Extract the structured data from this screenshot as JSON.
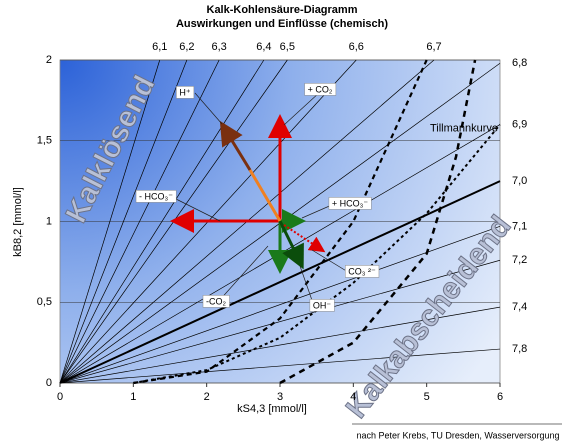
{
  "chart_data": {
    "type": "line",
    "title": "Kalk-Kohlensäure-Diagramm",
    "subtitle": "Auswirkungen und Einflüsse (chemisch)",
    "x_label": "kS4,3 [mmol/l]",
    "y_label": "kB8,2 [mmol/l]",
    "source": "nach Peter Krebs, TU Dresden, Wasserversorgung",
    "xlim": [
      0,
      6
    ],
    "xticks": [
      0,
      1,
      2,
      3,
      4,
      5,
      6
    ],
    "ylim": [
      0,
      2
    ],
    "yticks": [
      0,
      {
        "value": 0.5,
        "label": "0,5"
      },
      1,
      {
        "value": 1.5,
        "label": "1,5"
      },
      2
    ],
    "grid": true,
    "series": [
      {
        "name": "6,1",
        "color": "#000000",
        "width": 0.7,
        "x": [
          0,
          1.36
        ],
        "values": [
          0,
          2
        ]
      },
      {
        "name": "6,2",
        "color": "#000000",
        "width": 0.7,
        "x": [
          0,
          1.73
        ],
        "values": [
          0,
          2
        ]
      },
      {
        "name": "6,3",
        "color": "#000000",
        "width": 0.7,
        "x": [
          0,
          2.17
        ],
        "values": [
          0,
          2
        ]
      },
      {
        "name": "6,4",
        "color": "#000000",
        "width": 0.7,
        "x": [
          0,
          2.78
        ],
        "values": [
          0,
          2
        ]
      },
      {
        "name": "6,5",
        "color": "#000000",
        "width": 0.7,
        "x": [
          0,
          3.1
        ],
        "values": [
          0,
          2
        ]
      },
      {
        "name": "6,6",
        "color": "#000000",
        "width": 0.7,
        "x": [
          0,
          4.04
        ],
        "values": [
          0,
          2
        ]
      },
      {
        "name": "6,7",
        "color": "#000000",
        "width": 0.7,
        "x": [
          0,
          5.1
        ],
        "values": [
          0,
          2
        ]
      },
      {
        "name": "6,8",
        "color": "#000000",
        "width": 0.7,
        "x": [
          0,
          6
        ],
        "values": [
          0,
          1.98
        ]
      },
      {
        "name": "6,9",
        "color": "#000000",
        "width": 0.7,
        "x": [
          0,
          6
        ],
        "values": [
          0,
          1.6
        ]
      },
      {
        "name": "7,0",
        "color": "#000000",
        "width": 2,
        "x": [
          0,
          6
        ],
        "values": [
          0,
          1.25
        ]
      },
      {
        "name": "7,1",
        "color": "#000000",
        "width": 0.7,
        "x": [
          0,
          6
        ],
        "values": [
          0,
          0.97
        ]
      },
      {
        "name": "7,2",
        "color": "#000000",
        "width": 0.7,
        "x": [
          0,
          6
        ],
        "values": [
          0,
          0.76
        ]
      },
      {
        "name": "7,4",
        "color": "#000000",
        "width": 0.7,
        "x": [
          0,
          6
        ],
        "values": [
          0,
          0.47
        ]
      },
      {
        "name": "7,8",
        "color": "#000000",
        "width": 0.7,
        "x": [
          0,
          6
        ],
        "values": [
          0,
          0.21
        ]
      },
      {
        "color": "#000000",
        "width": 2.2,
        "dash": "5,4",
        "x": [
          1,
          2,
          3,
          4,
          5
        ],
        "values": [
          0,
          0.07,
          0.4,
          1.0,
          2.0
        ]
      },
      {
        "name": "Tillmannkurve",
        "color": "#000000",
        "width": 2,
        "dash": "3,3",
        "x": [
          1,
          2,
          3,
          4,
          5,
          6
        ],
        "values": [
          0,
          0.08,
          0.28,
          0.62,
          1.05,
          1.6
        ]
      },
      {
        "color": "#000000",
        "width": 2.5,
        "dash": "6,5",
        "x": [
          3,
          4,
          5,
          5.4,
          5.66
        ],
        "values": [
          0,
          0.25,
          0.8,
          1.4,
          2.0
        ]
      }
    ],
    "annotations": [
      "H⁺",
      "+ CO₂",
      "- HCO₃⁻",
      "+ HCO₃⁻",
      "CO₃ ²⁻",
      "OH⁻",
      "-CO₂"
    ],
    "regions": [
      "Kalklösend",
      "Kalkabscheidend"
    ]
  }
}
